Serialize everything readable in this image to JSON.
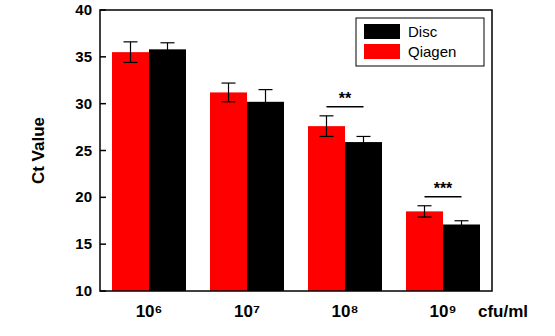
{
  "chart_data": {
    "type": "bar",
    "x_label": "cfu/ml",
    "y_label": "Ct Value",
    "categories": [
      "10⁶",
      "10⁷",
      "10⁸",
      "10⁹"
    ],
    "series": [
      {
        "name": "Qiagen",
        "color": "#ff0000",
        "values": [
          35.5,
          31.2,
          27.6,
          18.5
        ],
        "errors": [
          1.1,
          1.0,
          1.1,
          0.6
        ]
      },
      {
        "name": "Disc",
        "color": "#000000",
        "values": [
          35.8,
          30.2,
          25.9,
          17.1
        ],
        "errors": [
          0.7,
          1.3,
          0.6,
          0.4
        ]
      }
    ],
    "ylim": [
      10,
      40
    ],
    "yticks": [
      10,
      15,
      20,
      25,
      30,
      35,
      40
    ],
    "legend": "upper right",
    "annotations": [
      {
        "category": "10⁸",
        "text": "**"
      },
      {
        "category": "10⁹",
        "text": "***"
      }
    ]
  }
}
